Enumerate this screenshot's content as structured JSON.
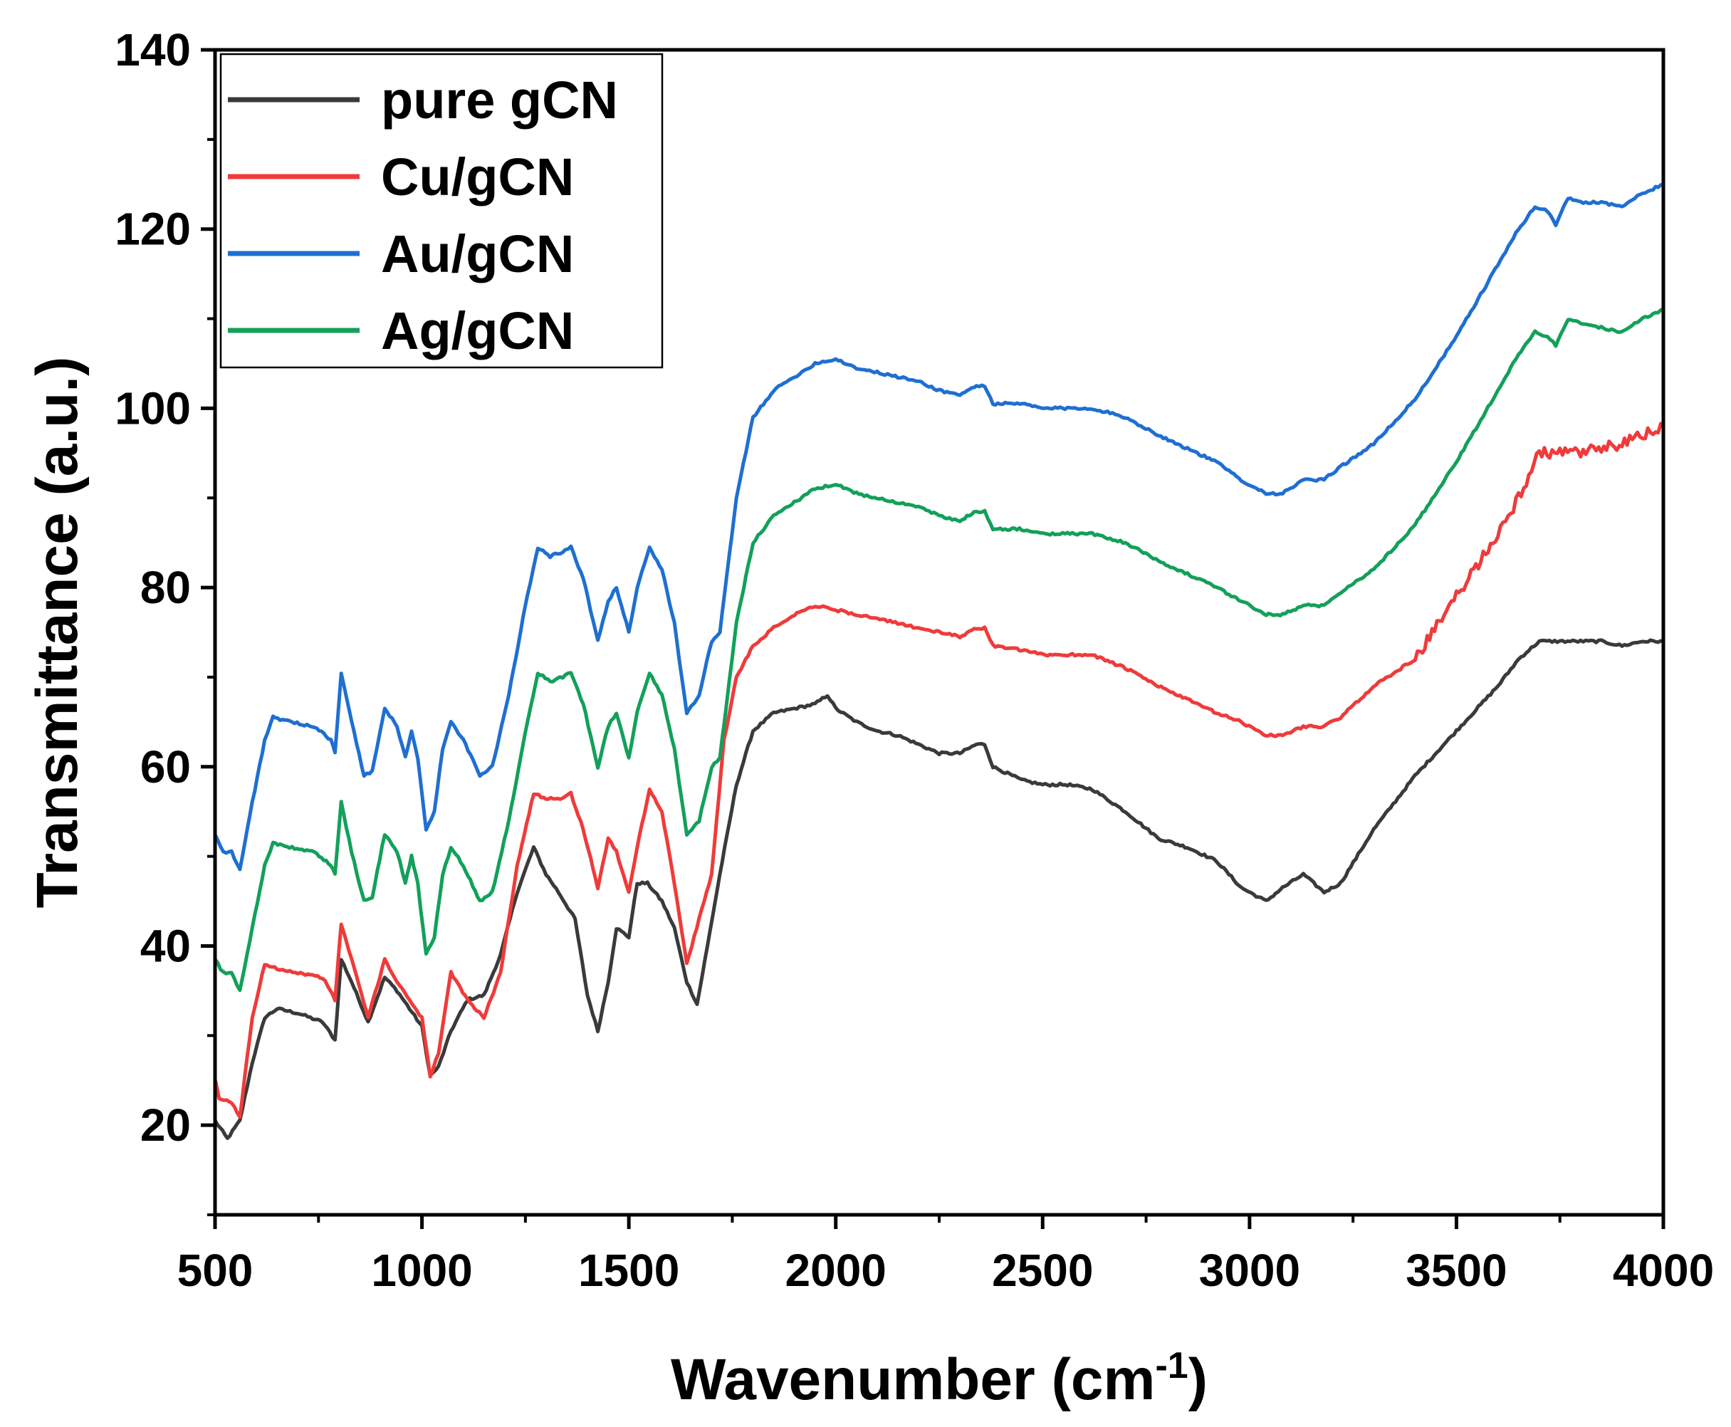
{
  "chart_data": {
    "type": "line",
    "xlabel": "Wavenumber (cm",
    "xlabel_sup": "-1",
    "xlabel_close": ")",
    "ylabel": "Transmittance (a.u.)",
    "xlim": [
      500,
      4000
    ],
    "ylim": [
      10,
      140
    ],
    "xticks": [
      500,
      1000,
      1500,
      2000,
      2500,
      3000,
      3500,
      4000
    ],
    "yticks": [
      20,
      40,
      60,
      80,
      100,
      120,
      140
    ],
    "legend_position": "top-left",
    "grid": false,
    "series": [
      {
        "name": "pure gCN",
        "color": "#3a3a3a",
        "x": [
          500,
          530,
          560,
          590,
          620,
          650,
          700,
          760,
          790,
          805,
          830,
          870,
          910,
          940,
          970,
          1000,
          1020,
          1040,
          1070,
          1110,
          1150,
          1190,
          1230,
          1270,
          1300,
          1330,
          1370,
          1400,
          1425,
          1450,
          1470,
          1500,
          1520,
          1545,
          1580,
          1610,
          1640,
          1665,
          1690,
          1720,
          1760,
          1800,
          1850,
          1900,
          1950,
          1980,
          2000,
          2050,
          2100,
          2150,
          2200,
          2250,
          2300,
          2340,
          2360,
          2380,
          2450,
          2500,
          2560,
          2620,
          2700,
          2780,
          2850,
          2920,
          2980,
          3040,
          3080,
          3130,
          3180,
          3220,
          3300,
          3400,
          3500,
          3600,
          3650,
          3700,
          3750,
          3800,
          3850,
          3900,
          3950,
          4000
        ],
        "values": [
          20.5,
          18.5,
          20.5,
          27,
          32,
          33,
          32.5,
          31.5,
          29.5,
          38.5,
          36,
          31.5,
          36.5,
          35,
          33,
          31,
          25.5,
          26.5,
          30.5,
          34,
          34.5,
          39,
          46,
          51,
          48,
          46,
          43,
          34.5,
          30.5,
          36,
          42,
          41,
          47,
          47,
          45,
          42,
          36,
          33.5,
          40,
          48,
          58,
          64,
          66,
          66.5,
          67,
          68,
          66.5,
          65,
          64,
          63.5,
          62.5,
          61.5,
          61.5,
          62.5,
          62.5,
          60,
          58.5,
          58,
          58,
          57.5,
          55,
          52,
          51,
          49.5,
          46.5,
          45,
          46.5,
          48,
          46,
          47,
          53,
          59,
          64,
          69,
          72,
          74,
          74,
          74,
          74,
          73.5,
          74,
          74
        ]
      },
      {
        "name": "Cu/gCN",
        "color": "#ef3b3b",
        "x": [
          500,
          510,
          540,
          560,
          590,
          620,
          650,
          700,
          760,
          790,
          805,
          830,
          870,
          910,
          940,
          970,
          1000,
          1020,
          1040,
          1070,
          1110,
          1150,
          1190,
          1230,
          1270,
          1300,
          1340,
          1360,
          1390,
          1425,
          1450,
          1470,
          1500,
          1520,
          1550,
          1580,
          1610,
          1640,
          1670,
          1700,
          1730,
          1760,
          1800,
          1850,
          1900,
          1950,
          2000,
          2050,
          2100,
          2150,
          2200,
          2250,
          2300,
          2340,
          2360,
          2380,
          2450,
          2500,
          2560,
          2620,
          2700,
          2780,
          2850,
          2920,
          2980,
          3040,
          3080,
          3130,
          3180,
          3220,
          3300,
          3400,
          3500,
          3600,
          3650,
          3700,
          3750,
          3800,
          3850,
          3900,
          3950,
          4000
        ],
        "values": [
          25,
          23,
          22.5,
          21,
          32,
          38,
          37.5,
          37,
          36.5,
          34,
          42.5,
          38.5,
          32,
          38.5,
          36,
          34,
          32,
          25.5,
          28,
          37,
          34,
          32,
          37,
          49,
          57,
          56.5,
          56.5,
          57,
          53,
          46.5,
          52,
          50.5,
          46,
          51,
          57.5,
          55,
          47,
          38,
          43,
          48,
          63,
          70,
          73.5,
          75.5,
          77,
          78,
          77.5,
          77,
          76.5,
          76,
          75.5,
          75,
          74.5,
          75.5,
          75.5,
          73.5,
          73,
          72.5,
          72.5,
          72.5,
          71,
          69,
          67.5,
          66,
          65,
          63.5,
          63.5,
          64.5,
          64.5,
          65.5,
          69,
          72,
          79,
          86,
          90,
          95,
          95,
          95,
          95.5,
          96,
          97,
          98
        ]
      },
      {
        "name": "Au/gCN",
        "color": "#1f6fd1",
        "x": [
          500,
          520,
          540,
          560,
          590,
          620,
          640,
          680,
          740,
          780,
          790,
          805,
          830,
          860,
          880,
          910,
          940,
          960,
          975,
          990,
          1010,
          1030,
          1050,
          1070,
          1100,
          1140,
          1170,
          1210,
          1250,
          1280,
          1310,
          1340,
          1360,
          1390,
          1425,
          1450,
          1470,
          1500,
          1520,
          1550,
          1580,
          1610,
          1640,
          1670,
          1700,
          1720,
          1760,
          1800,
          1850,
          1900,
          1950,
          2000,
          2050,
          2100,
          2150,
          2200,
          2250,
          2300,
          2340,
          2360,
          2380,
          2450,
          2500,
          2560,
          2620,
          2700,
          2780,
          2850,
          2920,
          2980,
          3040,
          3080,
          3130,
          3180,
          3220,
          3300,
          3400,
          3500,
          3600,
          3650,
          3690,
          3720,
          3740,
          3770,
          3800,
          3850,
          3900,
          3950,
          4000
        ],
        "values": [
          52.5,
          50.5,
          50.5,
          48.5,
          56,
          63,
          65.5,
          65,
          64.5,
          63,
          61.5,
          70.5,
          65,
          59,
          59.5,
          66.5,
          64.5,
          61,
          64,
          61,
          53,
          55,
          62,
          65,
          63,
          59,
          60,
          68,
          78,
          84.5,
          83.5,
          84,
          84.5,
          81,
          74,
          78.5,
          80,
          75,
          80,
          84.5,
          82,
          76,
          66,
          68,
          74,
          75,
          90,
          99,
          102,
          103.5,
          105,
          105.5,
          104.5,
          104,
          103.5,
          103,
          102,
          101.5,
          102.5,
          102.5,
          100.5,
          100.5,
          100,
          100,
          100,
          99,
          97,
          95.5,
          94,
          92,
          90.5,
          90.5,
          92,
          92,
          93.5,
          96,
          101,
          108,
          116,
          120,
          122.5,
          122,
          120.5,
          123.5,
          123,
          123,
          122.5,
          124,
          125
        ]
      },
      {
        "name": "Ag/gCN",
        "color": "#13a05a",
        "x": [
          500,
          520,
          540,
          560,
          590,
          620,
          640,
          680,
          740,
          780,
          790,
          805,
          830,
          860,
          880,
          910,
          940,
          960,
          975,
          990,
          1010,
          1030,
          1050,
          1070,
          1100,
          1140,
          1170,
          1210,
          1250,
          1280,
          1310,
          1340,
          1360,
          1390,
          1425,
          1450,
          1470,
          1500,
          1520,
          1550,
          1580,
          1610,
          1640,
          1670,
          1700,
          1720,
          1760,
          1800,
          1850,
          1900,
          1950,
          2000,
          2050,
          2100,
          2150,
          2200,
          2250,
          2300,
          2340,
          2360,
          2380,
          2450,
          2500,
          2560,
          2620,
          2700,
          2780,
          2850,
          2920,
          2980,
          3040,
          3080,
          3130,
          3180,
          3220,
          3300,
          3400,
          3500,
          3600,
          3650,
          3690,
          3720,
          3740,
          3770,
          3800,
          3850,
          3900,
          3950,
          4000
        ],
        "values": [
          38.5,
          37,
          37,
          35,
          42,
          49,
          51.5,
          51,
          50.5,
          49,
          48,
          56,
          50.5,
          45,
          45.5,
          52.5,
          50.5,
          47,
          50,
          47,
          39,
          41,
          48,
          51,
          49,
          45,
          46,
          54,
          64,
          70.5,
          69.5,
          70,
          70.5,
          67,
          60,
          64.5,
          66,
          61,
          66,
          70.5,
          68,
          62,
          52.5,
          54,
          60,
          61,
          76,
          85,
          88,
          89.5,
          91,
          91.5,
          90.5,
          90,
          89.5,
          89,
          88,
          87.5,
          88.5,
          88.5,
          86.5,
          86.5,
          86,
          86,
          86,
          85,
          83,
          81.5,
          80,
          78.5,
          77,
          77,
          78,
          78,
          79.5,
          82,
          87,
          94,
          102,
          106,
          108.5,
          108,
          107,
          110,
          109.5,
          109,
          108.5,
          110,
          111
        ]
      }
    ]
  }
}
